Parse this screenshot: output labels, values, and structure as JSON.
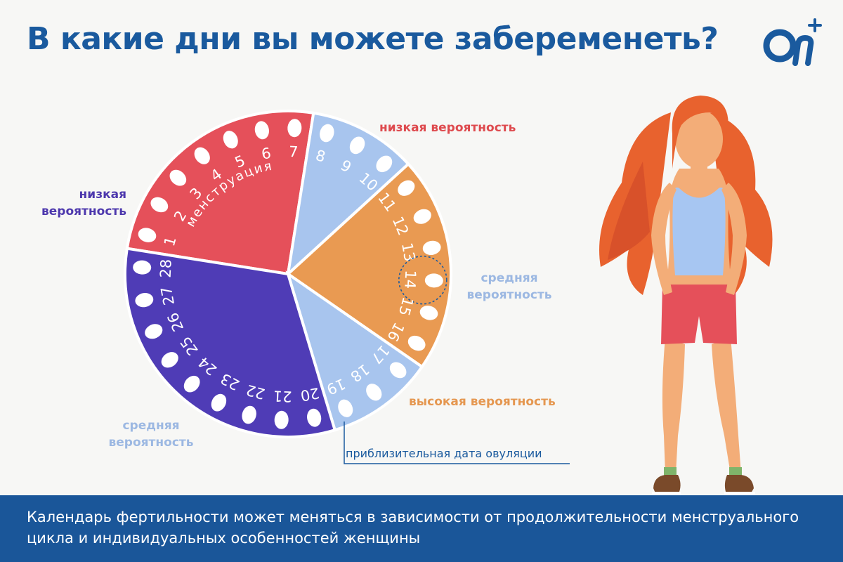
{
  "title": "В какие дни вы можете забеременеть?",
  "logo": {
    "text": "Ол",
    "plus": "+",
    "color": "#1a5a9e"
  },
  "cycle": {
    "center_label": "менструация",
    "phases": [
      {
        "name": "менструация",
        "days": [
          1,
          2,
          3,
          4,
          5,
          6,
          7
        ],
        "color": "#e5505a",
        "probability": "низкая вероятность"
      },
      {
        "name": "",
        "days": [
          8,
          9,
          10
        ],
        "color": "#a8c5ee",
        "probability": "средняя вероятность"
      },
      {
        "name": "",
        "days": [
          11,
          12,
          13,
          14,
          15,
          16
        ],
        "color": "#e99a52",
        "probability": "высокая вероятность"
      },
      {
        "name": "",
        "days": [
          17,
          18,
          19
        ],
        "color": "#a8c5ee",
        "probability": "средняя вероятность"
      },
      {
        "name": "",
        "days": [
          20,
          21,
          22,
          23,
          24,
          25,
          26,
          27,
          28
        ],
        "color": "#4f3cb6",
        "probability": "низкая вероятность"
      }
    ],
    "ovulation_day": 14
  },
  "labels": {
    "menstruation_low": "низкая вероятность",
    "late_low_1": "низкая",
    "late_low_2": "вероятность",
    "mid_top_1": "средняя",
    "mid_top_2": "вероятность",
    "high": "высокая вероятность",
    "mid_bottom_1": "средняя",
    "mid_bottom_2": "вероятность",
    "ovulation": "приблизительная дата овуляции"
  },
  "footer": {
    "text": "Календарь фертильности может меняться в зависимости от продолжительности менструального цикла и индивидуальных особенностей женщины"
  },
  "colors": {
    "title": "#1a5a9e",
    "footer_bg": "#1a5699",
    "red": "#e5505a",
    "light_blue": "#a8c5ee",
    "orange": "#e99a52",
    "purple": "#4f3cb6"
  }
}
